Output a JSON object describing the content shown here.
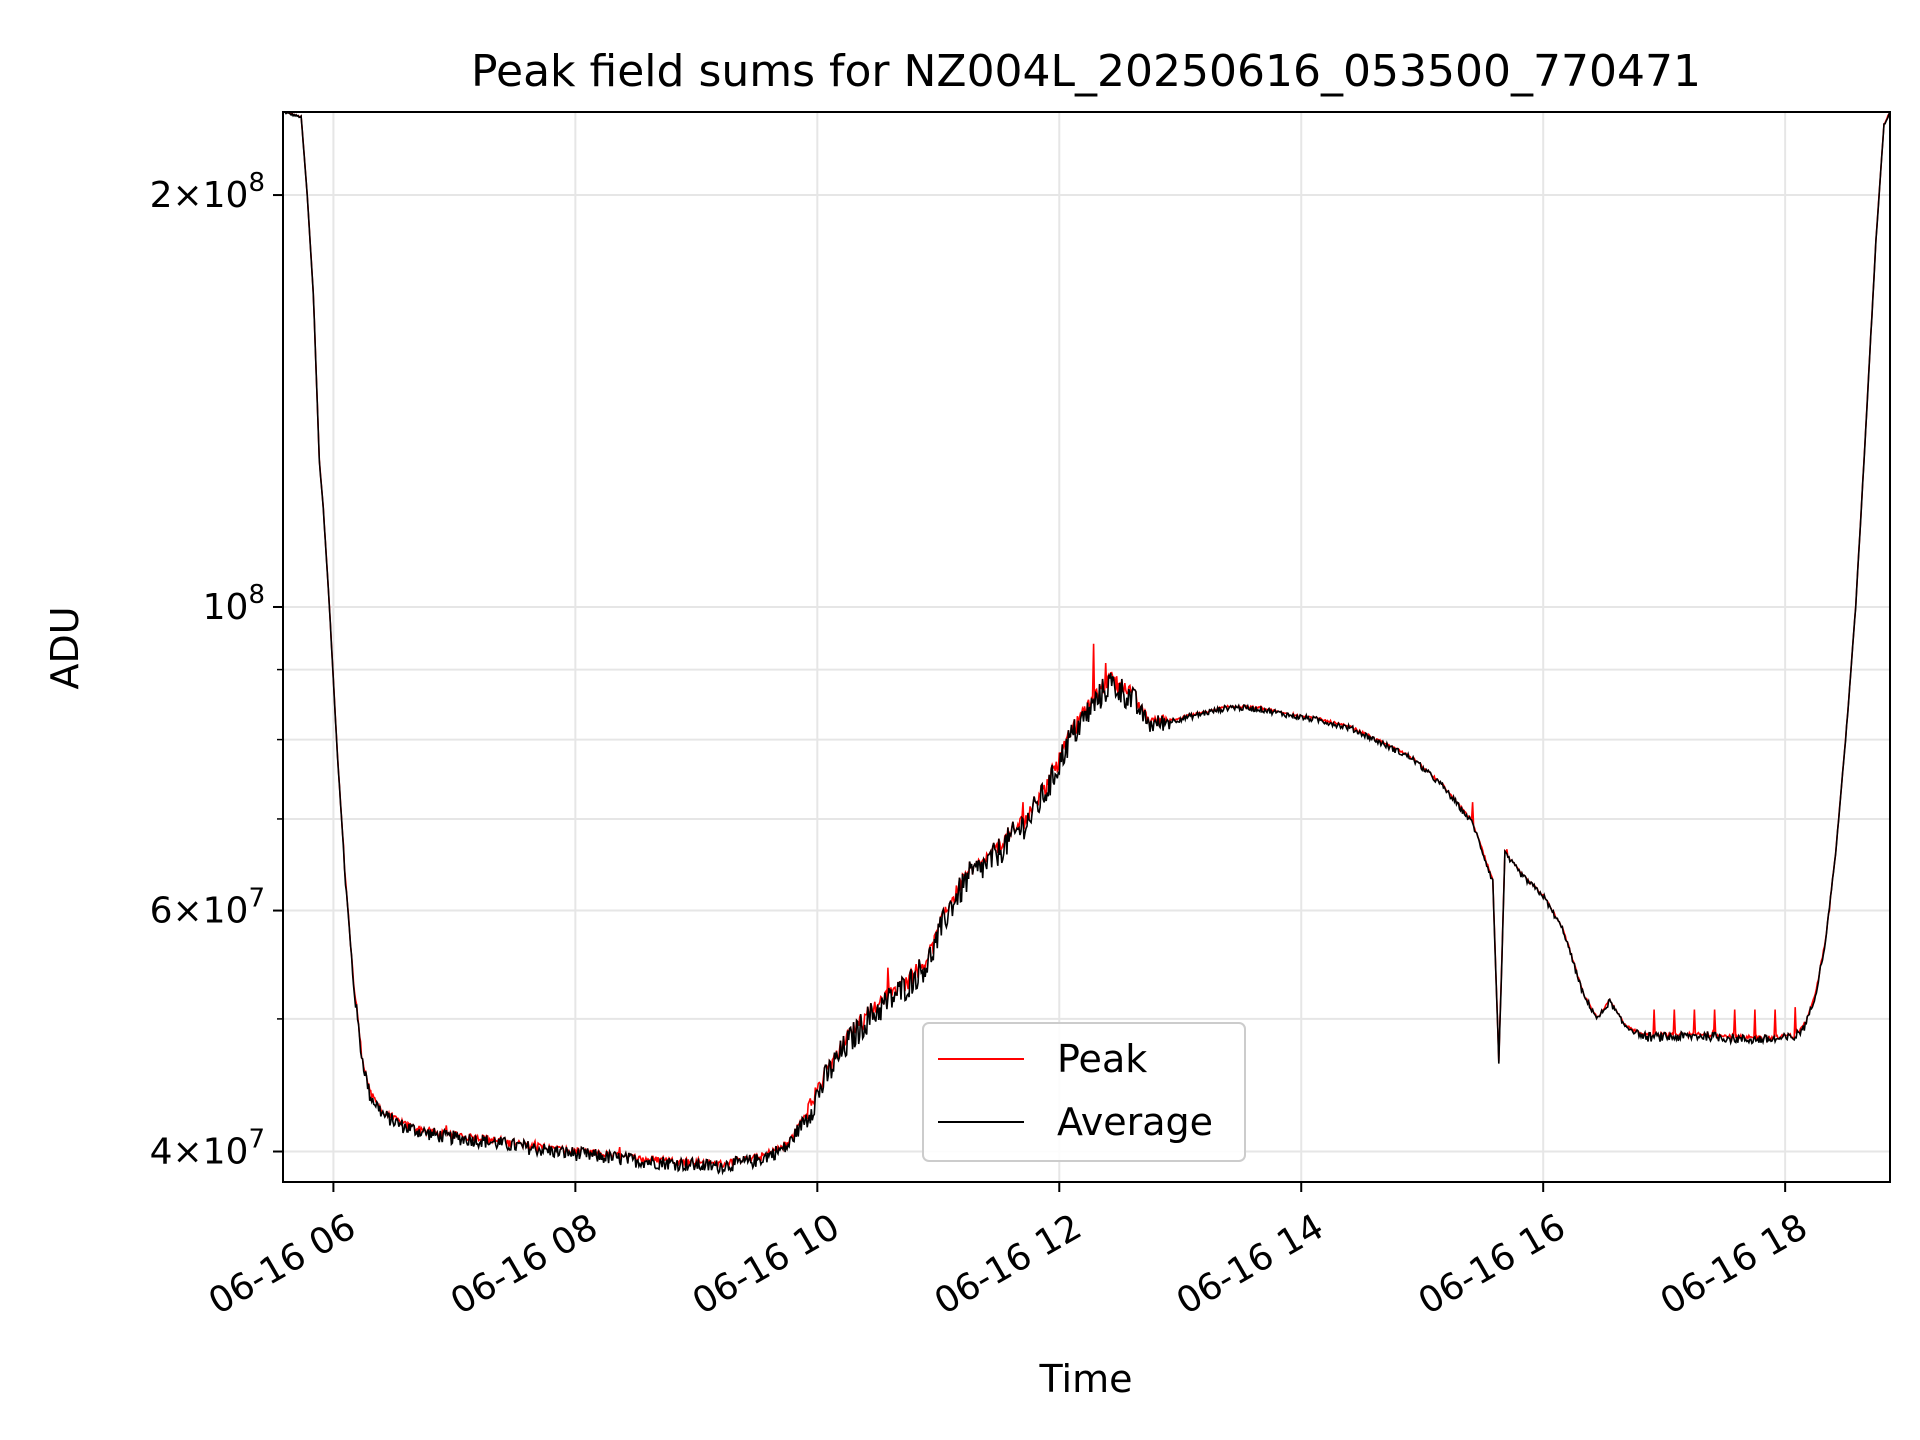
{
  "chart_data": {
    "type": "line",
    "title": "Peak field sums for NZ004L_20250616_053500_770471",
    "xlabel": "Time",
    "ylabel": "ADU",
    "x_axis": {
      "kind": "time",
      "range": [
        "2025-06-16 05:35",
        "2025-06-16 18:52"
      ],
      "ticks": [
        "06-16 06",
        "06-16 08",
        "06-16 10",
        "06-16 12",
        "06-16 14",
        "06-16 16",
        "06-16 18"
      ]
    },
    "y_axis": {
      "scale": "log",
      "range": [
        38000000,
        230000000
      ],
      "major_ticks": [
        {
          "value": 40000000,
          "mantissa": "4",
          "exponent": "7"
        },
        {
          "value": 60000000,
          "mantissa": "6",
          "exponent": "7"
        },
        {
          "value": 100000000,
          "mantissa": "",
          "exponent": "8"
        },
        {
          "value": 200000000,
          "mantissa": "2",
          "exponent": "8"
        }
      ],
      "minor_ticks": [
        50000000,
        70000000,
        80000000,
        90000000
      ]
    },
    "grid": true,
    "legend": {
      "placement": "lower center"
    },
    "colors": {
      "peak": "#ff0000",
      "average": "#000000"
    },
    "series": [
      {
        "name": "Average",
        "color": "#000000",
        "points": [
          [
            "05:35",
            230000000
          ],
          [
            "05:44",
            228000000
          ],
          [
            "05:47",
            200000000
          ],
          [
            "05:50",
            170000000
          ],
          [
            "05:53",
            128000000
          ],
          [
            "05:55",
            118000000
          ],
          [
            "05:58",
            100000000
          ],
          [
            "06:02",
            78000000
          ],
          [
            "06:06",
            63000000
          ],
          [
            "06:10",
            53000000
          ],
          [
            "06:14",
            47000000
          ],
          [
            "06:18",
            44000000
          ],
          [
            "06:25",
            42500000
          ],
          [
            "06:35",
            41700000
          ],
          [
            "06:45",
            41300000
          ],
          [
            "06:55",
            41000000
          ],
          [
            "07:10",
            40800000
          ],
          [
            "07:30",
            40400000
          ],
          [
            "07:50",
            40000000
          ],
          [
            "08:10",
            39700000
          ],
          [
            "08:30",
            39400000
          ],
          [
            "08:50",
            39200000
          ],
          [
            "09:10",
            39000000
          ],
          [
            "09:30",
            39400000
          ],
          [
            "09:45",
            40300000
          ],
          [
            "09:55",
            42500000
          ],
          [
            "10:05",
            45500000
          ],
          [
            "10:15",
            48000000
          ],
          [
            "10:25",
            50000000
          ],
          [
            "10:35",
            51500000
          ],
          [
            "10:45",
            53000000
          ],
          [
            "10:55",
            55000000
          ],
          [
            "11:05",
            60000000
          ],
          [
            "11:15",
            63500000
          ],
          [
            "11:25",
            65000000
          ],
          [
            "11:35",
            67500000
          ],
          [
            "11:45",
            70000000
          ],
          [
            "11:55",
            74000000
          ],
          [
            "12:05",
            80000000
          ],
          [
            "12:15",
            84000000
          ],
          [
            "12:25",
            88000000
          ],
          [
            "12:35",
            86000000
          ],
          [
            "12:45",
            82000000
          ],
          [
            "12:55",
            82500000
          ],
          [
            "13:10",
            83500000
          ],
          [
            "13:25",
            84500000
          ],
          [
            "13:40",
            84200000
          ],
          [
            "13:55",
            83300000
          ],
          [
            "14:10",
            82600000
          ],
          [
            "14:25",
            81500000
          ],
          [
            "14:40",
            79500000
          ],
          [
            "14:55",
            77500000
          ],
          [
            "15:10",
            74000000
          ],
          [
            "15:25",
            69500000
          ],
          [
            "15:35",
            63000000
          ],
          [
            "15:38",
            46500000
          ],
          [
            "15:41",
            66000000
          ],
          [
            "15:50",
            63500000
          ],
          [
            "16:00",
            61500000
          ],
          [
            "16:10",
            58000000
          ],
          [
            "16:20",
            52000000
          ],
          [
            "16:27",
            50000000
          ],
          [
            "16:33",
            51500000
          ],
          [
            "16:40",
            49500000
          ],
          [
            "16:50",
            48500000
          ],
          [
            "17:05",
            48500000
          ],
          [
            "17:20",
            48600000
          ],
          [
            "17:40",
            48300000
          ],
          [
            "17:55",
            48300000
          ],
          [
            "18:05",
            48500000
          ],
          [
            "18:10",
            49500000
          ],
          [
            "18:15",
            52000000
          ],
          [
            "18:20",
            57000000
          ],
          [
            "18:25",
            66000000
          ],
          [
            "18:30",
            80000000
          ],
          [
            "18:35",
            100000000
          ],
          [
            "18:40",
            135000000
          ],
          [
            "18:45",
            185000000
          ],
          [
            "18:49",
            225000000
          ],
          [
            "18:52",
            230000000
          ]
        ]
      },
      {
        "name": "Peak",
        "color": "#ff0000",
        "note": "closely follows Average with short upward spikes",
        "spikes": [
          [
            "06:56",
            41800000
          ],
          [
            "07:40",
            40700000
          ],
          [
            "08:22",
            40300000
          ],
          [
            "10:35",
            54500000
          ],
          [
            "11:42",
            72000000
          ],
          [
            "12:17",
            94000000
          ],
          [
            "12:23",
            91000000
          ],
          [
            "15:25",
            72000000
          ],
          [
            "15:42",
            66500000
          ],
          [
            "16:55",
            50800000
          ],
          [
            "17:05",
            50800000
          ],
          [
            "17:15",
            50800000
          ],
          [
            "17:25",
            50800000
          ],
          [
            "17:35",
            50800000
          ],
          [
            "17:45",
            50800000
          ],
          [
            "17:55",
            50800000
          ],
          [
            "18:05",
            51000000
          ],
          [
            "18:22",
            60000000
          ]
        ]
      }
    ]
  }
}
